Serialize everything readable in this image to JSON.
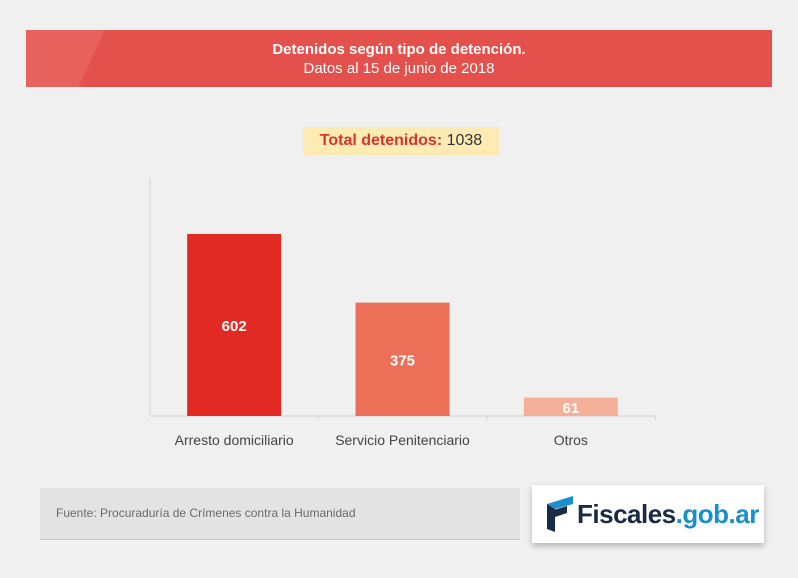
{
  "header": {
    "title": "Detenidos según tipo de detención.",
    "subtitle": "Datos al 15 de junio de 2018"
  },
  "total": {
    "label": "Total detenidos:",
    "value": "1038"
  },
  "chart_data": {
    "type": "bar",
    "title": "Detenidos según tipo de detención.",
    "subtitle": "Datos al 15 de junio de 2018",
    "categories": [
      "Arresto domiciliario",
      "Servicio Penitenciario",
      "Otros"
    ],
    "values": [
      602,
      375,
      61
    ],
    "colors": [
      "#e02a23",
      "#ec7058",
      "#f4af98"
    ],
    "data_labels": [
      "602",
      "375",
      "61"
    ],
    "ylim": [
      0,
      800
    ],
    "grid": false,
    "legend": "none",
    "xlabel": "",
    "ylabel": ""
  },
  "source": {
    "text": "Fuente: Procuraduría de Crímenes contra la Humanidad"
  },
  "logo": {
    "main": "Fiscales",
    "tld": ".gob.ar",
    "icon": "flag-icon",
    "colors": {
      "dark": "#1a2a44",
      "accent": "#1a8fcb"
    }
  }
}
